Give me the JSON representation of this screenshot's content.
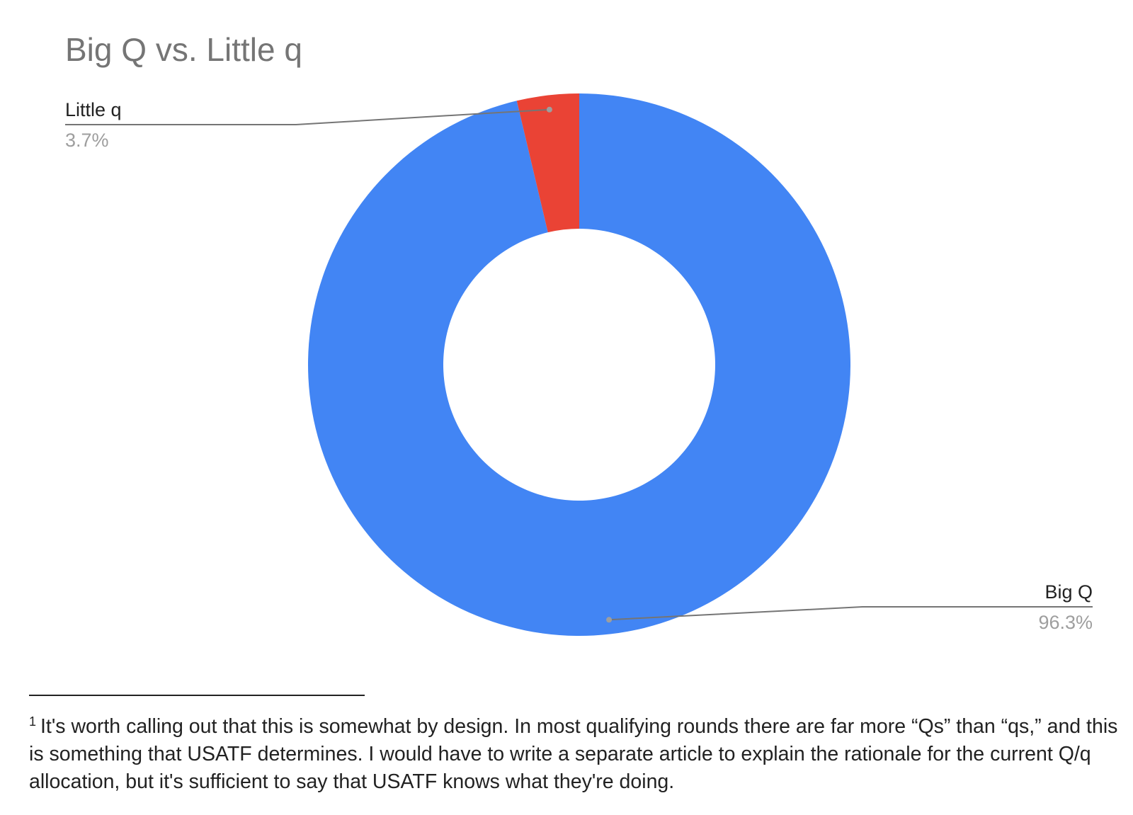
{
  "chart_data": {
    "type": "donut",
    "title": "Big Q vs. Little q",
    "categories": [
      "Big Q",
      "Little q"
    ],
    "values": [
      96.3,
      3.7
    ],
    "value_labels": [
      "96.3%",
      "3.7%"
    ],
    "colors": [
      "#4285f4",
      "#ea4335"
    ]
  },
  "footnote": {
    "marker": "1",
    "text": "It's worth calling out that this is somewhat by design. In most qualifying rounds there are far more “Qs” than “qs,” and this is something that USATF determines. I would have to write a separate article to explain the rationale for the current Q/q allocation, but it's sufficient to say that USATF knows what they're doing."
  }
}
